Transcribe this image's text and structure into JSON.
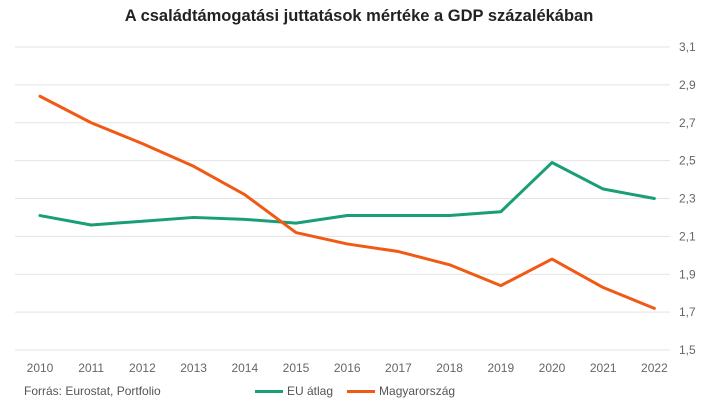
{
  "chart_data": {
    "type": "line",
    "title": "A családtámogatási juttatások mértéke a GDP százalékában",
    "x": [
      "2010",
      "2011",
      "2012",
      "2013",
      "2014",
      "2015",
      "2016",
      "2017",
      "2018",
      "2019",
      "2020",
      "2021",
      "2022"
    ],
    "series": [
      {
        "name": "EU átlag",
        "color": "#1a9e77",
        "values": [
          2.21,
          2.16,
          2.18,
          2.2,
          2.19,
          2.17,
          2.21,
          2.21,
          2.21,
          2.23,
          2.49,
          2.35,
          2.3
        ]
      },
      {
        "name": "Magyarország",
        "color": "#f05a14",
        "values": [
          2.84,
          2.7,
          2.59,
          2.47,
          2.32,
          2.12,
          2.06,
          2.02,
          1.95,
          1.84,
          1.98,
          1.83,
          1.72
        ]
      }
    ],
    "yticks": [
      "1,5",
      "1,7",
      "1,9",
      "2,1",
      "2,3",
      "2,5",
      "2,7",
      "2,9",
      "3,1"
    ],
    "ylim": [
      1.5,
      3.1
    ],
    "y_axis_side": "right",
    "grid": true,
    "legend": "bottom"
  },
  "footer": {
    "source": "Forrás:  Eurostat,  Portfolio"
  }
}
